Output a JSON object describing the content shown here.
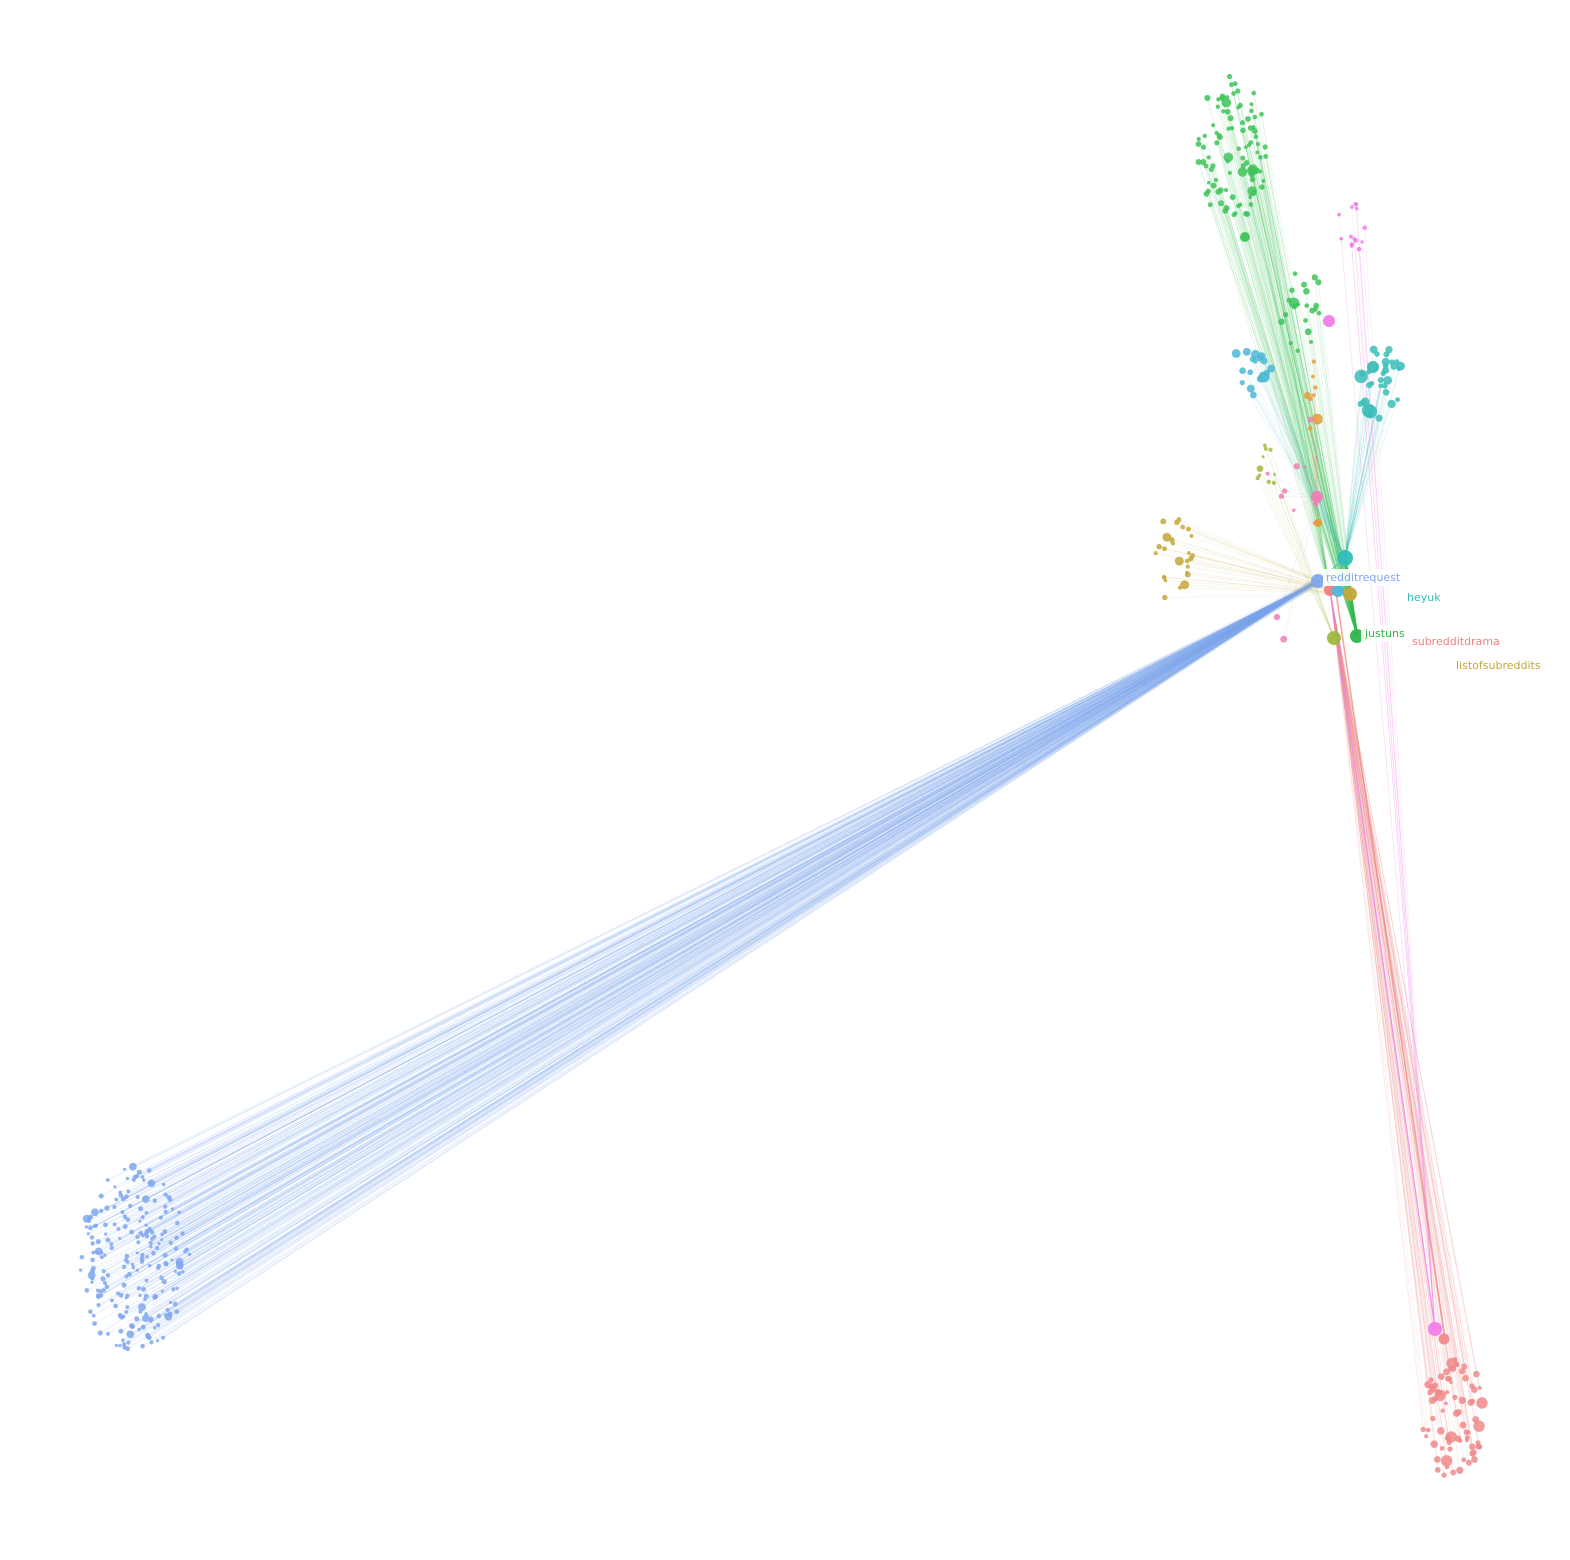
{
  "graph": {
    "background": "#ffffff",
    "hubs": [
      {
        "id": "redditrequest",
        "label": "redditrequest",
        "color": "#7fa7ee",
        "show_label": true
      },
      {
        "id": "heyuk",
        "label": "heyuk",
        "color": "#31bdb6",
        "show_label": true
      },
      {
        "id": "justunsubbed",
        "label": "justuns",
        "color": "#2fb64c",
        "show_label": true
      },
      {
        "id": "subredditdrama",
        "label": "subredditdrama",
        "color": "#ef8080",
        "show_label": true
      },
      {
        "id": "listofsubreddits",
        "label": "listofsubreddits",
        "color": "#c4a83a",
        "show_label": true
      },
      {
        "id": "hub-olive",
        "label": "",
        "color": "#9fb83f",
        "show_label": false
      },
      {
        "id": "hub-magenta",
        "label": "",
        "color": "#f07ee8",
        "show_label": false
      },
      {
        "id": "hub-pink",
        "label": "",
        "color": "#ee7fb6",
        "show_label": false
      },
      {
        "id": "hub-orange",
        "label": "",
        "color": "#e89a3a",
        "show_label": false
      },
      {
        "id": "hub-cyan",
        "label": "",
        "color": "#4cb9d6",
        "show_label": false
      }
    ],
    "communities": [
      {
        "name": "blue",
        "color": "#7fa7ee",
        "hub": "redditrequest",
        "node_count": 220
      },
      {
        "name": "green",
        "color": "#3ec35a",
        "hub": "justunsubbed",
        "node_count": 95
      },
      {
        "name": "salmon",
        "color": "#f08a8a",
        "hub": "subredditdrama",
        "node_count": 75
      },
      {
        "name": "teal",
        "color": "#3dbdb8",
        "hub": "heyuk",
        "node_count": 32
      },
      {
        "name": "cyan",
        "color": "#4cb9d6",
        "hub": "heyuk",
        "node_count": 16
      },
      {
        "name": "magenta",
        "color": "#f07ee8",
        "hub": "hub-magenta",
        "node_count": 14
      },
      {
        "name": "gold",
        "color": "#c4a83a",
        "hub": "listofsubreddits",
        "node_count": 26
      },
      {
        "name": "olive",
        "color": "#9fb83f",
        "hub": "hub-olive",
        "node_count": 10
      },
      {
        "name": "midgreen",
        "color": "#3ec35a",
        "hub": "justunsubbed",
        "node_count": 22
      },
      {
        "name": "orange",
        "color": "#e89a3a",
        "hub": "hub-orange",
        "node_count": 8
      },
      {
        "name": "pink",
        "color": "#ee7fb6",
        "hub": "hub-pink",
        "node_count": 12
      }
    ]
  }
}
